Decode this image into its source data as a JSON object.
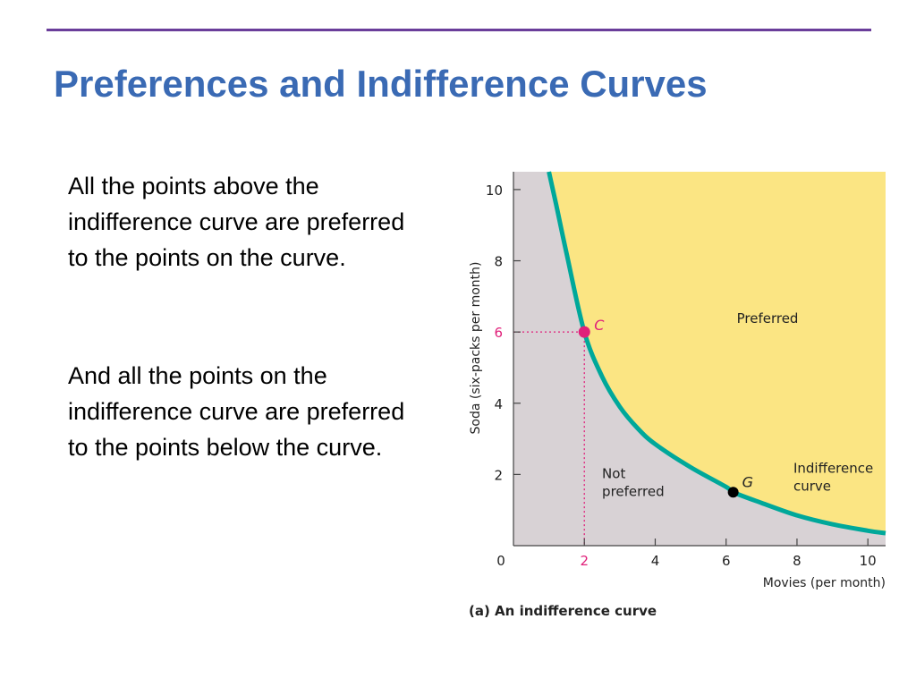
{
  "slide": {
    "title": "Preferences and Indifference Curves",
    "paragraphs": [
      "All the points above the indifference curve are preferred to the points on the curve.",
      "And all the points on the indifference curve are preferred to the points below the curve."
    ]
  },
  "colors": {
    "title": "#3a6ab4",
    "rule": "#6a3d9a",
    "preferred_region": "#fbe583",
    "not_preferred_region": "#d8d2d5",
    "curve": "#00a89a",
    "highlight": "#e0207a",
    "point_g": "#000000"
  },
  "chart_data": {
    "type": "line",
    "caption": "(a) An indifference curve",
    "xlabel": "Movies (per month)",
    "ylabel": "Soda (six-packs per month)",
    "xlim": [
      0,
      10.5
    ],
    "ylim": [
      0,
      10.5
    ],
    "x_ticks": [
      0,
      2,
      4,
      6,
      8,
      10
    ],
    "y_ticks": [
      2,
      4,
      6,
      8,
      10
    ],
    "curve": {
      "x": [
        1.0,
        1.2,
        1.5,
        2.0,
        2.5,
        3.0,
        3.5,
        4.0,
        5.0,
        6.0,
        6.2,
        7.0,
        8.0,
        9.0,
        10.0,
        10.5
      ],
      "y": [
        10.5,
        9.6,
        8.2,
        6.0,
        4.75,
        3.9,
        3.3,
        2.85,
        2.2,
        1.65,
        1.5,
        1.2,
        0.85,
        0.6,
        0.42,
        0.35
      ]
    },
    "points": [
      {
        "label": "C",
        "x": 2,
        "y": 6
      },
      {
        "label": "G",
        "x": 6.2,
        "y": 1.5
      }
    ],
    "region_labels": {
      "preferred": "Preferred",
      "not_preferred": [
        "Not",
        "preferred"
      ],
      "curve": [
        "Indifference",
        "curve"
      ]
    }
  }
}
